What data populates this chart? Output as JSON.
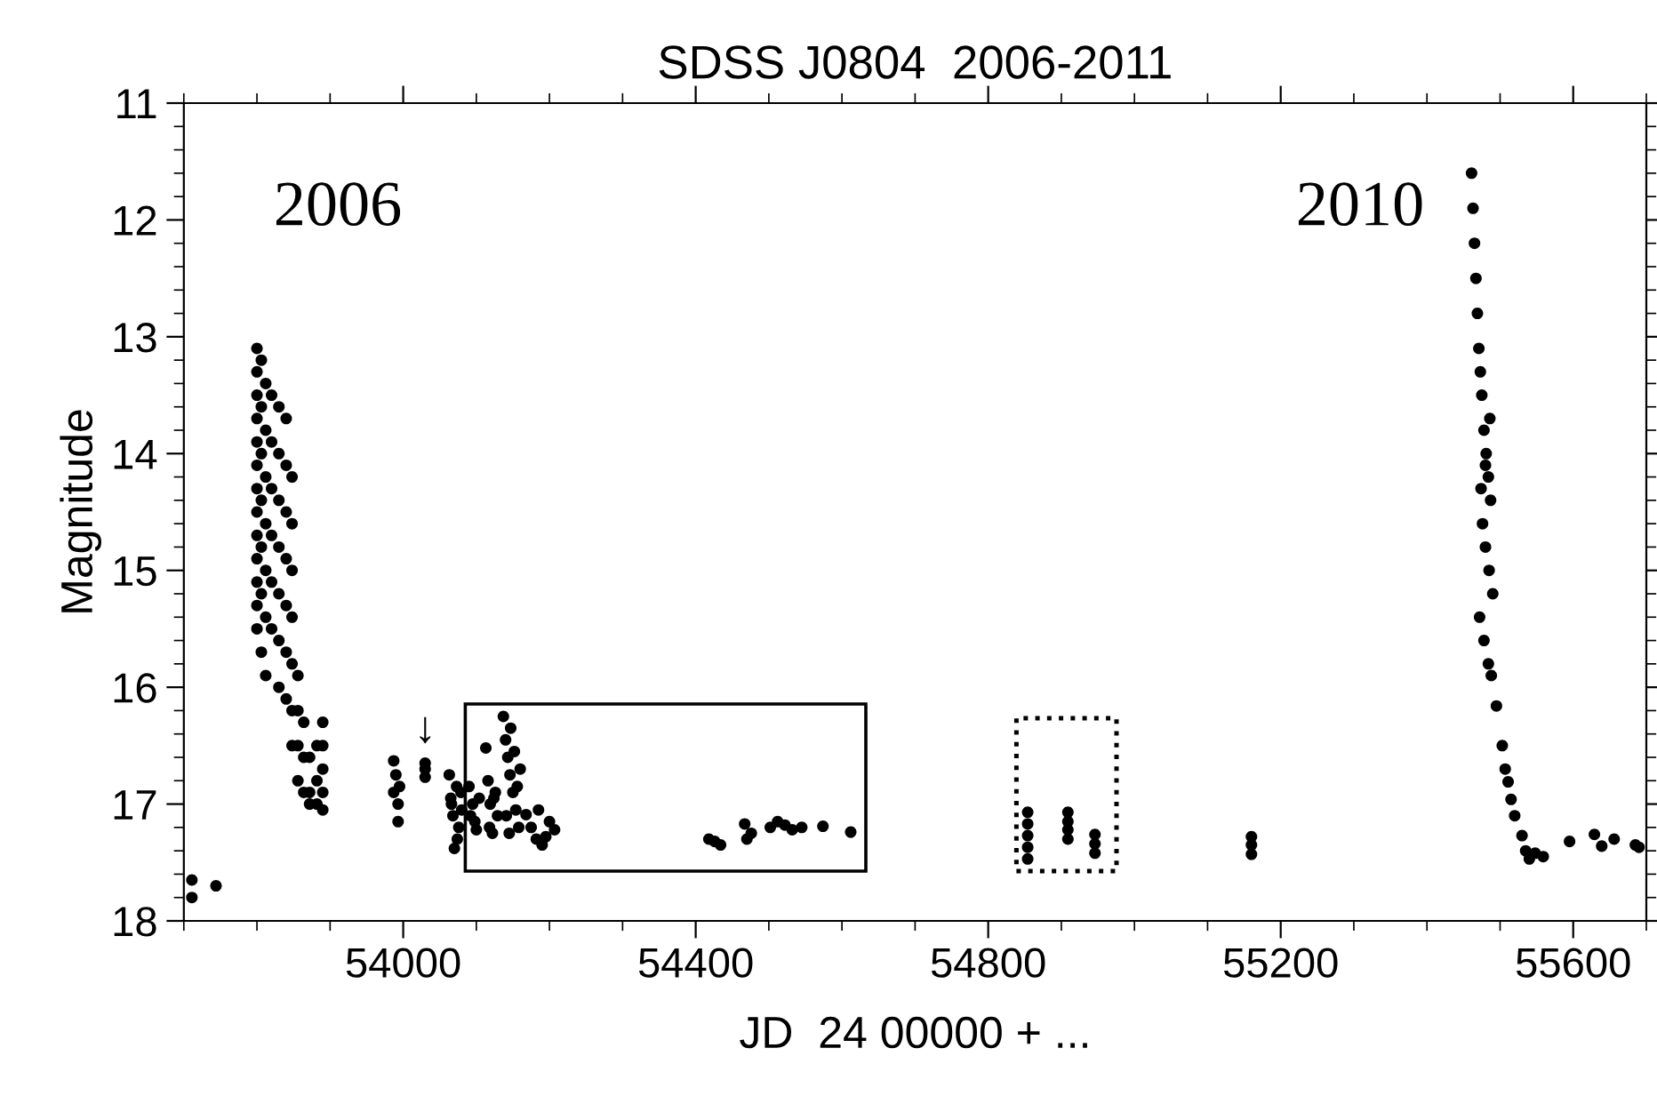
{
  "chart_data": {
    "type": "scatter",
    "title": "SDSS J0804  2006-2011",
    "xlabel": "JD  24 00000 + ...",
    "ylabel": "Magnitude",
    "xlim": [
      53700,
      55700
    ],
    "xticks": [
      54000,
      54400,
      54800,
      55200,
      55600
    ],
    "ylim": [
      18,
      11
    ],
    "yticks": [
      11,
      12,
      13,
      14,
      15,
      16,
      17,
      18
    ],
    "grid": false,
    "marker": "circle",
    "annotations": [
      "2006",
      "2010",
      {
        "text": "↓",
        "x": 54030,
        "y": 16.55
      }
    ],
    "series": [
      {
        "color": "#000000",
        "x": [
          53711,
          53711,
          53744,
          53800,
          53800,
          53800,
          53800,
          53800,
          53800,
          53800,
          53800,
          53800,
          53800,
          53800,
          53800,
          53800,
          53806,
          53806,
          53806,
          53806,
          53806,
          53806,
          53806,
          53812,
          53812,
          53812,
          53812,
          53812,
          53812,
          53812,
          53820,
          53820,
          53820,
          53820,
          53820,
          53820,
          53830,
          53830,
          53830,
          53830,
          53830,
          53830,
          53830,
          53840,
          53840,
          53840,
          53840,
          53840,
          53840,
          53840,
          53848,
          53848,
          53848,
          53848,
          53848,
          53848,
          53848,
          53856,
          53856,
          53856,
          53856,
          53864,
          53864,
          53864,
          53872,
          53872,
          53872,
          53882,
          53882,
          53882,
          53890,
          53890,
          53890,
          53890,
          53890,
          53987,
          53987,
          53990,
          53993,
          53993,
          53995,
          54030,
          54030,
          54030,
          54063,
          54066,
          54070,
          54073,
          54076,
          54079,
          54068,
          54074,
          54080,
          54065,
          54090,
          54095,
          54100,
          54104,
          54092,
          54098,
          54113,
          54116,
          54119,
          54122,
          54126,
          54129,
          54118,
          54124,
          54137,
          54140,
          54143,
          54146,
          54150,
          54154,
          54158,
          54147,
          54152,
          54156,
          54141,
          54145,
          54160,
          54168,
          54175,
          54182,
          54190,
          54200,
          54207,
          54185,
          54195,
          54418,
          54426,
          54434,
          54467,
          54470,
          54476,
          54502,
          54512,
          54522,
          54532,
          54545,
          54574,
          54612,
          54854,
          54854,
          54854,
          54854,
          54854,
          54909,
          54909,
          54909,
          54909,
          54946,
          54946,
          54946,
          55160,
          55160,
          55160,
          55461,
          55463,
          55465,
          55467,
          55469,
          55471,
          55473,
          55475,
          55478,
          55481,
          55484,
          55487,
          55476,
          55480,
          55485,
          55490,
          55472,
          55478,
          55484,
          55474,
          55480,
          55486,
          55488,
          55495,
          55503,
          55507,
          55511,
          55515,
          55520,
          55530,
          55535,
          55540,
          55548,
          55559,
          55595,
          55629,
          55639,
          55656,
          55685,
          55690
        ],
        "values": [
          17.65,
          17.8,
          17.7,
          13.1,
          13.3,
          13.5,
          13.7,
          13.9,
          14.1,
          14.3,
          14.5,
          14.7,
          14.9,
          15.1,
          15.3,
          15.5,
          13.2,
          13.6,
          14.0,
          14.4,
          14.8,
          15.2,
          15.7,
          13.4,
          13.8,
          14.2,
          14.6,
          15.0,
          15.4,
          15.9,
          13.5,
          13.9,
          14.3,
          14.7,
          15.1,
          15.5,
          13.6,
          14.0,
          14.4,
          14.8,
          15.2,
          15.6,
          16.0,
          13.7,
          14.1,
          14.5,
          14.9,
          15.3,
          15.7,
          16.1,
          14.2,
          14.6,
          15.0,
          15.4,
          15.8,
          16.2,
          16.5,
          15.9,
          16.2,
          16.5,
          16.8,
          16.3,
          16.6,
          16.9,
          16.6,
          16.9,
          17.0,
          16.5,
          16.8,
          17.0,
          16.3,
          16.5,
          16.7,
          16.9,
          17.05,
          16.63,
          16.9,
          16.75,
          17.0,
          17.15,
          16.85,
          16.65,
          16.7,
          16.77,
          16.75,
          17.0,
          17.38,
          16.85,
          17.2,
          16.9,
          17.1,
          17.3,
          17.05,
          16.95,
          16.85,
          17.0,
          17.22,
          16.95,
          17.1,
          17.15,
          16.52,
          16.8,
          17.0,
          17.25,
          16.9,
          17.1,
          17.2,
          16.95,
          16.25,
          16.45,
          16.6,
          16.75,
          16.9,
          17.05,
          17.2,
          16.35,
          16.55,
          16.85,
          17.1,
          17.25,
          16.7,
          17.09,
          17.2,
          17.3,
          17.35,
          17.15,
          17.22,
          17.05,
          17.28,
          17.3,
          17.32,
          17.35,
          17.17,
          17.3,
          17.25,
          17.2,
          17.15,
          17.18,
          17.22,
          17.2,
          17.19,
          17.24,
          17.07,
          17.17,
          17.27,
          17.37,
          17.47,
          17.07,
          17.15,
          17.22,
          17.3,
          17.26,
          17.34,
          17.42,
          17.28,
          17.35,
          17.43,
          11.6,
          11.9,
          12.2,
          12.5,
          12.8,
          13.1,
          13.3,
          13.5,
          13.8,
          14.0,
          14.2,
          14.4,
          14.6,
          14.8,
          15.0,
          15.2,
          15.4,
          15.6,
          15.8,
          14.3,
          14.1,
          13.7,
          15.9,
          16.16,
          16.5,
          16.7,
          16.81,
          16.96,
          17.1,
          17.27,
          17.4,
          17.47,
          17.42,
          17.45,
          17.32,
          17.26,
          17.36,
          17.3,
          17.35,
          17.37
        ]
      }
    ]
  }
}
